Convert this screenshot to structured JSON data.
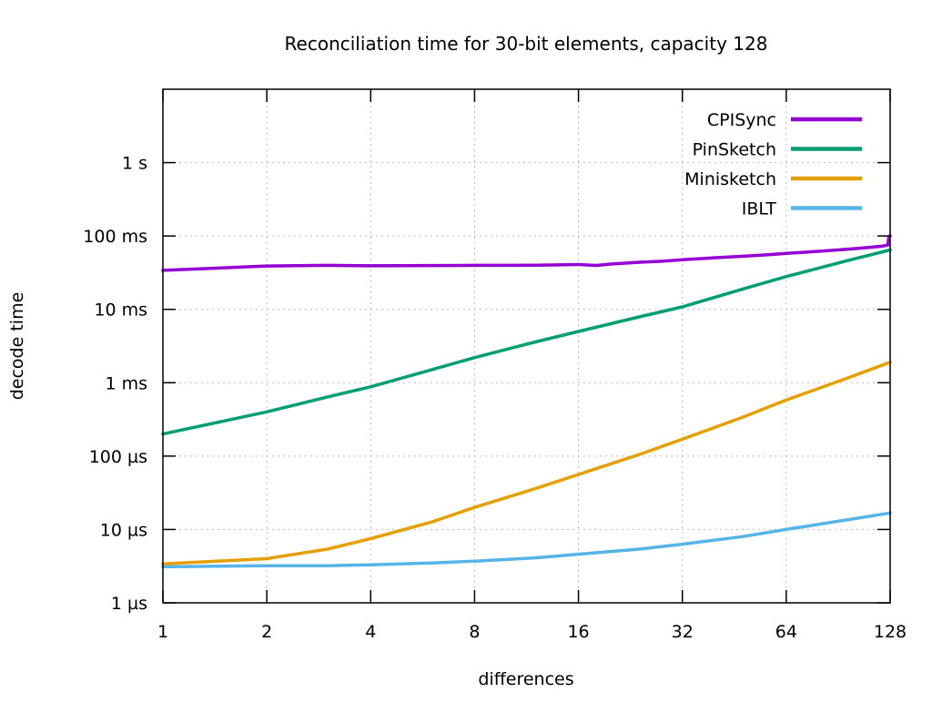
{
  "chart_data": {
    "type": "line",
    "title": "Reconciliation time for 30-bit elements, capacity 128",
    "xlabel": "differences",
    "ylabel": "decode time",
    "x_scale": "log2",
    "y_scale": "log10",
    "xlim": [
      1,
      128
    ],
    "ylim_seconds": [
      1e-06,
      10
    ],
    "grid": true,
    "legend_position": "top-right",
    "x_ticks": [
      {
        "value": 1,
        "label": "1"
      },
      {
        "value": 2,
        "label": "2"
      },
      {
        "value": 4,
        "label": "4"
      },
      {
        "value": 8,
        "label": "8"
      },
      {
        "value": 16,
        "label": "16"
      },
      {
        "value": 32,
        "label": "32"
      },
      {
        "value": 64,
        "label": "64"
      },
      {
        "value": 128,
        "label": "128"
      }
    ],
    "y_ticks": [
      {
        "value": 1e-06,
        "label": "1 µs",
        "gridline": false
      },
      {
        "value": 1e-05,
        "label": "10 µs",
        "gridline": true
      },
      {
        "value": 0.0001,
        "label": "100 µs",
        "gridline": true
      },
      {
        "value": 0.001,
        "label": "1 ms",
        "gridline": true
      },
      {
        "value": 0.01,
        "label": "10 ms",
        "gridline": true
      },
      {
        "value": 0.1,
        "label": "100 ms",
        "gridline": true
      },
      {
        "value": 1,
        "label": "1 s",
        "gridline": true
      }
    ],
    "series": [
      {
        "name": "CPISync",
        "color": "#9400d3",
        "points": [
          [
            1,
            0.034
          ],
          [
            2,
            0.039
          ],
          [
            3,
            0.0398
          ],
          [
            4,
            0.0392
          ],
          [
            6,
            0.0396
          ],
          [
            8,
            0.0398
          ],
          [
            10,
            0.0398
          ],
          [
            12,
            0.04
          ],
          [
            14,
            0.0403
          ],
          [
            16,
            0.0408
          ],
          [
            18,
            0.0397
          ],
          [
            20,
            0.0415
          ],
          [
            24,
            0.0438
          ],
          [
            28,
            0.0452
          ],
          [
            32,
            0.0475
          ],
          [
            40,
            0.0505
          ],
          [
            48,
            0.053
          ],
          [
            56,
            0.0553
          ],
          [
            64,
            0.0578
          ],
          [
            80,
            0.062
          ],
          [
            96,
            0.066
          ],
          [
            112,
            0.07
          ],
          [
            122,
            0.073
          ],
          [
            126,
            0.075
          ],
          [
            127,
            0.098
          ],
          [
            128,
            0.1
          ]
        ]
      },
      {
        "name": "PinSketch",
        "color": "#009e73",
        "points": [
          [
            1,
            0.0002
          ],
          [
            2,
            0.0004
          ],
          [
            3,
            0.00064
          ],
          [
            4,
            0.00088
          ],
          [
            6,
            0.0015
          ],
          [
            8,
            0.0022
          ],
          [
            12,
            0.0036
          ],
          [
            16,
            0.005
          ],
          [
            24,
            0.0079
          ],
          [
            32,
            0.0108
          ],
          [
            48,
            0.019
          ],
          [
            64,
            0.028
          ],
          [
            96,
            0.046
          ],
          [
            128,
            0.0645
          ]
        ]
      },
      {
        "name": "Minisketch",
        "color": "#e69f00",
        "points": [
          [
            1,
            3.4e-06
          ],
          [
            2,
            4e-06
          ],
          [
            3,
            5.4e-06
          ],
          [
            4,
            7.5e-06
          ],
          [
            6,
            1.26e-05
          ],
          [
            8,
            2e-05
          ],
          [
            12,
            3.6e-05
          ],
          [
            16,
            5.6e-05
          ],
          [
            24,
            0.000105
          ],
          [
            32,
            0.00017
          ],
          [
            48,
            0.00034
          ],
          [
            64,
            0.00058
          ],
          [
            96,
            0.00115
          ],
          [
            128,
            0.0019
          ]
        ]
      },
      {
        "name": "IBLT",
        "color": "#56b4e9",
        "points": [
          [
            1,
            3.1e-06
          ],
          [
            2,
            3.2e-06
          ],
          [
            3,
            3.2e-06
          ],
          [
            4,
            3.3e-06
          ],
          [
            6,
            3.5e-06
          ],
          [
            8,
            3.7e-06
          ],
          [
            12,
            4.1e-06
          ],
          [
            16,
            4.6e-06
          ],
          [
            24,
            5.4e-06
          ],
          [
            32,
            6.3e-06
          ],
          [
            48,
            8e-06
          ],
          [
            64,
            1e-05
          ],
          [
            96,
            1.35e-05
          ],
          [
            128,
            1.68e-05
          ]
        ]
      }
    ]
  },
  "legend": {
    "entries": [
      {
        "label": "CPISync",
        "color": "#9400d3"
      },
      {
        "label": "PinSketch",
        "color": "#009e73"
      },
      {
        "label": "Minisketch",
        "color": "#e69f00"
      },
      {
        "label": "IBLT",
        "color": "#56b4e9"
      }
    ]
  },
  "colors": {
    "background": "#ffffff",
    "border": "#000000",
    "grid": "#bbbbbb",
    "text": "#000000"
  }
}
